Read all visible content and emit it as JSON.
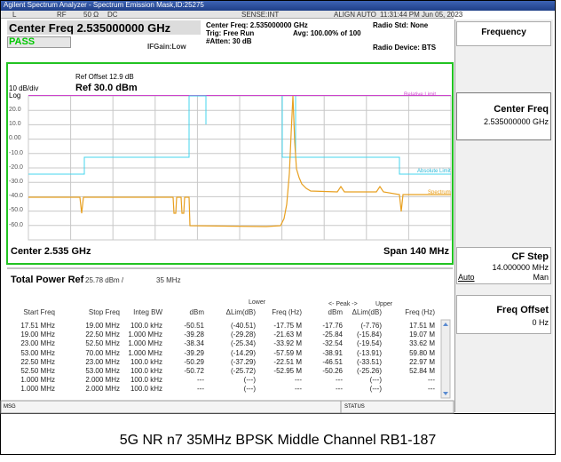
{
  "window": {
    "title": "Agilent Spectrum Analyzer - Spectrum Emission Mask,ID:25275"
  },
  "status_row": {
    "mode": "L",
    "rf": "RF",
    "impedance": "50 Ω",
    "coupling": "DC",
    "sense": "SENSE:INT",
    "align": "ALIGN AUTO",
    "datetime": "11:31:44 PM Jun 05, 2023"
  },
  "header": {
    "center_freq": "Center Freq 2.535000000 GHz",
    "result": "PASS",
    "if_gain": "IFGain:Low",
    "center_freq_info": "Center Freq: 2.535000000 GHz",
    "trig": "Trig: Free Run",
    "atten": "#Atten: 30 dB",
    "avg": "Avg: 100.00% of 100",
    "radio_std": "Radio Std: None",
    "radio_device": "Radio Device: BTS"
  },
  "plot": {
    "ref_offset": "Ref Offset 12.9 dB",
    "scale": "10 dB/div",
    "ref_level": "Ref 30.0 dBm",
    "log": "Log",
    "y_labels": [
      "20.0",
      "10.0",
      "0.00",
      "-10.0",
      "-20.0",
      "-30.0",
      "-40.0",
      "-50.0",
      "-60.0"
    ],
    "relative_limit": "Relative Limit",
    "absolute_limit": "Absolute Limit",
    "spectrum": "Spectrum",
    "center": "Center  2.535 GHz",
    "span": "Span 140 MHz"
  },
  "total_power": {
    "label": "Total Power Ref",
    "value": "25.78 dBm /",
    "bandwidth": "35 MHz"
  },
  "table": {
    "group_headers": [
      "Lower",
      "<- Peak ->",
      "Upper"
    ],
    "columns": [
      "Start Freq",
      "Stop Freq",
      "Integ BW",
      "dBm",
      "ΔLim(dB)",
      "Freq (Hz)",
      "dBm",
      "ΔLim(dB)",
      "Freq (Hz)"
    ],
    "rows": [
      [
        "17.51 MHz",
        "19.00 MHz",
        "100.0 kHz",
        "-50.51",
        "(-40.51)",
        "-17.75 M",
        "-17.76",
        "(-7.76)",
        "17.51 M"
      ],
      [
        "19.00 MHz",
        "22.50 MHz",
        "1.000 MHz",
        "-39.28",
        "(-29.28)",
        "-21.63 M",
        "-25.84",
        "(-15.84)",
        "19.07 M"
      ],
      [
        "23.00 MHz",
        "52.50 MHz",
        "1.000 MHz",
        "-38.34",
        "(-25.34)",
        "-33.92 M",
        "-32.54",
        "(-19.54)",
        "33.62 M"
      ],
      [
        "53.00 MHz",
        "70.00 MHz",
        "1.000 MHz",
        "-39.29",
        "(-14.29)",
        "-57.59 M",
        "-38.91",
        "(-13.91)",
        "59.80 M"
      ],
      [
        "22.50 MHz",
        "23.00 MHz",
        "100.0 kHz",
        "-50.29",
        "(-37.29)",
        "-22.51 M",
        "-46.51",
        "(-33.51)",
        "22.97 M"
      ],
      [
        "52.50 MHz",
        "53.00 MHz",
        "100.0 kHz",
        "-50.72",
        "(-25.72)",
        "-52.95 M",
        "-50.26",
        "(-25.26)",
        "52.84 M"
      ],
      [
        "1.000 MHz",
        "2.000 MHz",
        "100.0 kHz",
        "---",
        "(---)",
        "---",
        "---",
        "(---)",
        "---"
      ],
      [
        "1.000 MHz",
        "2.000 MHz",
        "100.0 kHz",
        "---",
        "(---)",
        "---",
        "---",
        "(---)",
        "---"
      ]
    ]
  },
  "menu": {
    "title": "Frequency",
    "center_freq": "Center Freq",
    "center_freq_value": "2.535000000 GHz",
    "cf_step": "CF Step",
    "cf_step_value": "14.000000 MHz",
    "auto": "Auto",
    "man": "Man",
    "freq_offset": "Freq Offset",
    "freq_offset_value": "0 Hz"
  },
  "footer": {
    "msg": "MSG",
    "status": "STATUS"
  },
  "caption": "5G NR n7 35MHz BPSK Middle Channel RB1-187"
}
